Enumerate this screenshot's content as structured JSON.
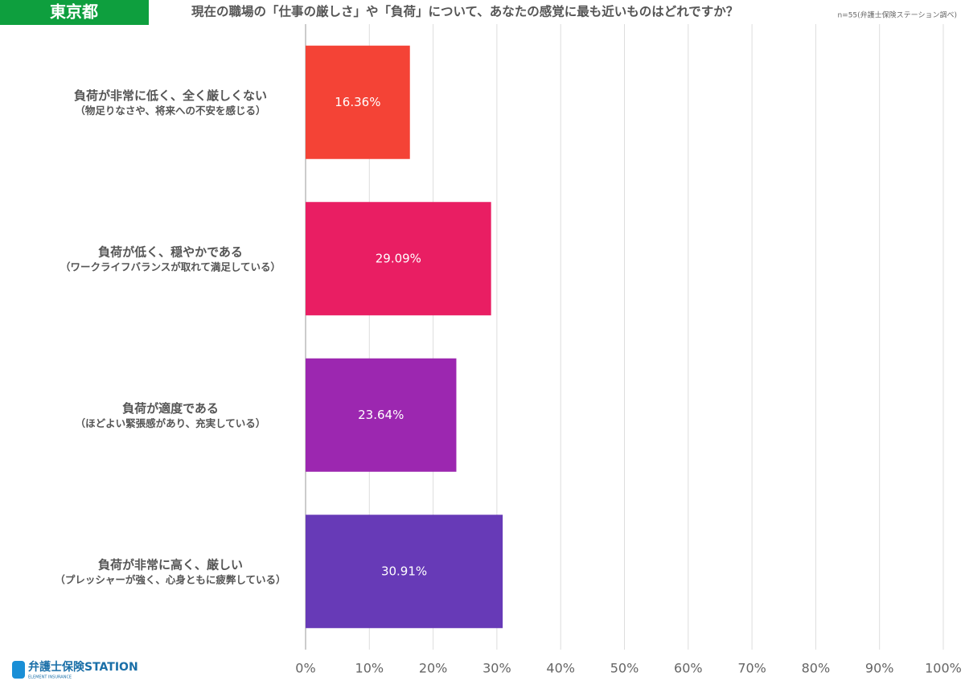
{
  "chart_data": {
    "type": "bar",
    "orientation": "horizontal",
    "badge": "東京都",
    "title": "現在の職場の「仕事の厳しさ」や「負荷」について、あなたの感覚に最も近いものはどれですか？",
    "note": "n=55(弁護士保険ステーション調べ)",
    "logo": "弁護士保険STATION",
    "logo_sub": "ELEMENT INSURANCE",
    "categories": [
      "負荷が非常に低く、全く厳しくない",
      "負荷が低く、穏やかである",
      "負荷が適度である",
      "負荷が非常に高く、厳しい"
    ],
    "category_notes": [
      "（物足りなさや、将来への不安を感じる）",
      "（ワークライフバランスが取れて満足している）",
      "（ほどよい緊張感があり、充実している）",
      "（プレッシャーが強く、心身ともに疲弊している）"
    ],
    "values": [
      16.36,
      29.09,
      23.64,
      30.91
    ],
    "value_labels": [
      "16.36%",
      "29.09%",
      "23.64%",
      "30.91%"
    ],
    "colors": [
      "#f44336",
      "#e91e63",
      "#9c27b0",
      "#673ab7"
    ],
    "xlim": [
      0,
      100
    ],
    "xticks": [
      {
        "value": 0,
        "label": "0%"
      },
      {
        "value": 10,
        "label": "10%"
      },
      {
        "value": 20,
        "label": "20%"
      },
      {
        "value": 30,
        "label": "30%"
      },
      {
        "value": 40,
        "label": "40%"
      },
      {
        "value": 50,
        "label": "50%"
      },
      {
        "value": 60,
        "label": "60%"
      },
      {
        "value": 70,
        "label": "70%"
      },
      {
        "value": 80,
        "label": "80%"
      },
      {
        "value": 90,
        "label": "90%"
      },
      {
        "value": 100,
        "label": "100%"
      }
    ],
    "grid": true
  }
}
